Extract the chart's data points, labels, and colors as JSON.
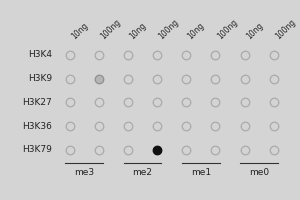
{
  "rows": [
    "H3K4",
    "H3K9",
    "H3K27",
    "H3K36",
    "H3K79"
  ],
  "col_top_labels": [
    "10ng",
    "100ng",
    "10ng",
    "100ng",
    "10ng",
    "100ng",
    "10ng",
    "100ng"
  ],
  "group_labels": [
    "me3",
    "me2",
    "me1",
    "me0"
  ],
  "n_cols": 8,
  "background_color": "#d4d4d4",
  "dot_facecolor_default": "#d4d4d4",
  "dot_edgecolor_default": "#aaaaaa",
  "dot_facecolor_black": "#101010",
  "dot_edgecolor_black": "#101010",
  "dot_facecolor_gray": "#b8b8b8",
  "dot_edgecolor_gray": "#909090",
  "dot_size": 38,
  "dot_linewidth": 0.9,
  "special_dots": [
    {
      "row": 4,
      "col": 3,
      "face": "#101010",
      "edge": "#101010"
    },
    {
      "row": 1,
      "col": 1,
      "face": "#b5b5b5",
      "edge": "#909090"
    }
  ],
  "font_size_row": 6.5,
  "font_size_top": 5.5,
  "font_size_group": 6.5
}
